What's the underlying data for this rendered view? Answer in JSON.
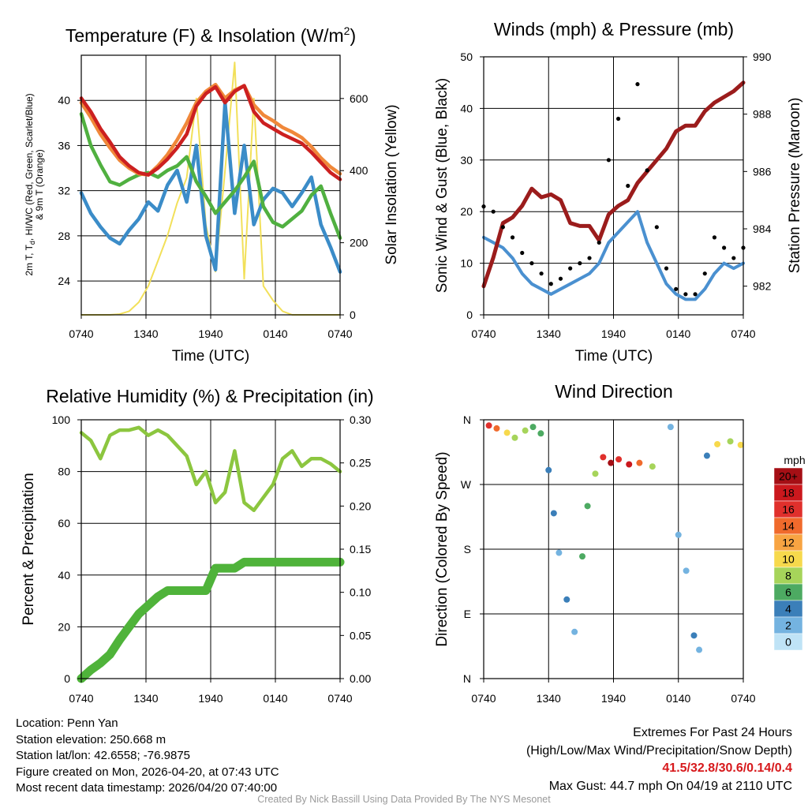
{
  "chart_data": [
    {
      "type": "line",
      "title": "Temperature (F) & Insolation (W/m",
      "title_sup": "2",
      "title_end": ")",
      "xlabel": "Time (UTC)",
      "ylabel_lines": [
        "2m T, T",
        "d",
        ", HI/WC (Red, Green, Scarlet/Blue)",
        "& 9m T (Orange)"
      ],
      "y2label": "Solar Insolation (Yellow)",
      "x_ticks": [
        "0740",
        "1340",
        "1940",
        "0140",
        "0740"
      ],
      "ylim": [
        21,
        44
      ],
      "y_ticks": [
        "24",
        "28",
        "32",
        "36",
        "40"
      ],
      "y2lim": [
        0,
        720
      ],
      "y2_ticks": [
        "0",
        "200",
        "400",
        "600"
      ],
      "series": [
        {
          "name": "2m T",
          "color": "#cc2020",
          "values": [
            40.2,
            39.0,
            37.5,
            36.3,
            35.0,
            34.2,
            33.6,
            33.4,
            34.0,
            34.8,
            35.8,
            37.0,
            39.5,
            40.6,
            41.2,
            39.8,
            40.8,
            41.3,
            39.0,
            38.0,
            37.5,
            37.0,
            36.6,
            36.2,
            35.4,
            34.5,
            33.6,
            33.0
          ]
        },
        {
          "name": "9m T",
          "color": "#f0883a",
          "values": [
            39.8,
            38.5,
            37.0,
            35.8,
            34.7,
            34.0,
            33.5,
            33.4,
            34.2,
            35.2,
            36.5,
            38.0,
            39.8,
            40.8,
            41.4,
            40.2,
            40.9,
            41.3,
            39.6,
            38.7,
            38.2,
            37.6,
            37.2,
            36.7,
            35.9,
            34.9,
            34.1,
            33.5
          ]
        },
        {
          "name": "Td",
          "color": "#50b040",
          "values": [
            38.8,
            36.0,
            34.3,
            32.8,
            32.5,
            33.0,
            33.4,
            33.6,
            33.2,
            33.8,
            34.2,
            35.0,
            32.8,
            31.5,
            30.0,
            31.0,
            32.0,
            33.2,
            34.6,
            30.6,
            29.2,
            28.8,
            29.5,
            30.2,
            31.6,
            32.4,
            30.0,
            27.8
          ]
        },
        {
          "name": "HI/WC",
          "color": "#3b8cc8",
          "values": [
            31.8,
            30.0,
            28.8,
            27.8,
            27.3,
            28.5,
            29.5,
            31.0,
            30.2,
            32.5,
            33.8,
            31.0,
            36.0,
            28.0,
            25.0,
            39.8,
            30.0,
            36.0,
            29.0,
            31.2,
            32.2,
            31.8,
            30.6,
            31.8,
            33.2,
            29.0,
            27.0,
            24.8
          ]
        }
      ],
      "insolation": {
        "name": "Solar Insolation",
        "color": "#f2e05a",
        "values": [
          0,
          0,
          0,
          0,
          2,
          10,
          35,
          80,
          150,
          220,
          310,
          380,
          600,
          250,
          120,
          400,
          700,
          100,
          600,
          80,
          40,
          10,
          0,
          0,
          0,
          0,
          0,
          0
        ]
      }
    },
    {
      "type": "line",
      "title": "Winds (mph) & Pressure (mb)",
      "xlabel": "Time (UTC)",
      "ylabel": "Sonic Wind & Gust (Blue, Black)",
      "y2label": "Station Pressure (Maroon)",
      "x_ticks": [
        "0740",
        "1340",
        "1940",
        "0140",
        "0740"
      ],
      "ylim": [
        0,
        50
      ],
      "y_ticks": [
        "0",
        "10",
        "20",
        "30",
        "40",
        "50"
      ],
      "y2lim": [
        981,
        990
      ],
      "y2_ticks": [
        "982",
        "984",
        "986",
        "988",
        "990"
      ],
      "series": [
        {
          "name": "Sonic Wind",
          "color": "#4a90d0",
          "values": [
            15,
            14,
            13,
            11,
            8,
            6,
            5,
            4,
            5,
            6,
            7,
            8,
            10,
            14,
            16,
            18,
            20,
            14,
            10,
            6,
            4,
            3,
            3,
            5,
            8,
            10,
            9,
            10
          ]
        },
        {
          "name": "Pressure",
          "color": "#9b1c1c",
          "values": [
            982.0,
            983.0,
            984.2,
            984.4,
            984.8,
            985.4,
            985.1,
            985.2,
            985.0,
            984.2,
            984.1,
            984.1,
            983.6,
            984.5,
            984.8,
            985.0,
            985.6,
            986.0,
            986.4,
            986.8,
            987.4,
            987.6,
            987.6,
            988.1,
            988.4,
            988.6,
            988.8,
            989.1
          ]
        }
      ],
      "gusts": {
        "name": "Gust",
        "color": "#000000",
        "values": [
          21,
          20,
          17,
          15,
          12,
          10,
          8,
          6,
          7,
          9,
          10,
          11,
          14,
          30,
          38,
          25,
          44.7,
          28,
          17,
          9,
          5,
          4,
          4,
          8,
          15,
          13,
          11,
          13
        ]
      }
    },
    {
      "type": "line",
      "title": "Relative Humidity (%) & Precipitation (in)",
      "ylabel": "Percent & Precipitation",
      "x_ticks": [
        "0740",
        "1340",
        "1940",
        "0140",
        "0740"
      ],
      "ylim": [
        0,
        100
      ],
      "y_ticks": [
        "0",
        "20",
        "40",
        "60",
        "80",
        "100"
      ],
      "y2lim": [
        0,
        0.3
      ],
      "y2_ticks": [
        "0.00",
        "0.05",
        "0.10",
        "0.15",
        "0.20",
        "0.25",
        "0.30"
      ],
      "series": [
        {
          "name": "Relative Humidity",
          "color": "#8cc63f",
          "values": [
            95,
            92,
            85,
            94,
            96,
            96,
            97,
            94,
            96,
            94,
            90,
            86,
            75,
            80,
            68,
            72,
            88,
            68,
            65,
            70,
            75,
            85,
            88,
            82,
            85,
            85,
            83,
            80
          ]
        },
        {
          "name": "Precipitation",
          "color": "#4fb33a",
          "values": [
            0.0,
            0.01,
            0.018,
            0.028,
            0.045,
            0.06,
            0.075,
            0.085,
            0.095,
            0.102,
            0.102,
            0.102,
            0.102,
            0.102,
            0.128,
            0.128,
            0.128,
            0.135,
            0.135,
            0.135,
            0.135,
            0.135,
            0.135,
            0.135,
            0.135,
            0.135,
            0.135,
            0.135
          ]
        }
      ]
    },
    {
      "type": "scatter",
      "title": "Wind Direction",
      "ylabel": "Direction (Colored By Speed)",
      "x_ticks": [
        "0740",
        "1340",
        "1940",
        "0140",
        "0740"
      ],
      "y_ticks": [
        "N",
        "E",
        "S",
        "W",
        "N"
      ],
      "ylim": [
        0,
        360
      ],
      "points": [
        {
          "t": 0.02,
          "dir": 352,
          "spd": 16
        },
        {
          "t": 0.05,
          "dir": 348,
          "spd": 15
        },
        {
          "t": 0.09,
          "dir": 342,
          "spd": 11
        },
        {
          "t": 0.12,
          "dir": 335,
          "spd": 9
        },
        {
          "t": 0.16,
          "dir": 345,
          "spd": 8
        },
        {
          "t": 0.19,
          "dir": 350,
          "spd": 6
        },
        {
          "t": 0.22,
          "dir": 341,
          "spd": 7
        },
        {
          "t": 0.25,
          "dir": 290,
          "spd": 4
        },
        {
          "t": 0.27,
          "dir": 230,
          "spd": 4
        },
        {
          "t": 0.29,
          "dir": 175,
          "spd": 3
        },
        {
          "t": 0.32,
          "dir": 110,
          "spd": 4
        },
        {
          "t": 0.35,
          "dir": 65,
          "spd": 3
        },
        {
          "t": 0.38,
          "dir": 170,
          "spd": 6
        },
        {
          "t": 0.4,
          "dir": 240,
          "spd": 7
        },
        {
          "t": 0.43,
          "dir": 285,
          "spd": 9
        },
        {
          "t": 0.46,
          "dir": 308,
          "spd": 17
        },
        {
          "t": 0.49,
          "dir": 300,
          "spd": 20
        },
        {
          "t": 0.52,
          "dir": 305,
          "spd": 16
        },
        {
          "t": 0.56,
          "dir": 298,
          "spd": 18
        },
        {
          "t": 0.6,
          "dir": 300,
          "spd": 14
        },
        {
          "t": 0.65,
          "dir": 295,
          "spd": 8
        },
        {
          "t": 0.72,
          "dir": 350,
          "spd": 2
        },
        {
          "t": 0.75,
          "dir": 200,
          "spd": 3
        },
        {
          "t": 0.78,
          "dir": 150,
          "spd": 2
        },
        {
          "t": 0.81,
          "dir": 60,
          "spd": 4
        },
        {
          "t": 0.83,
          "dir": 40,
          "spd": 3
        },
        {
          "t": 0.86,
          "dir": 310,
          "spd": 5
        },
        {
          "t": 0.9,
          "dir": 326,
          "spd": 10
        },
        {
          "t": 0.95,
          "dir": 330,
          "spd": 9
        },
        {
          "t": 0.99,
          "dir": 325,
          "spd": 11
        }
      ],
      "colorbar": {
        "title": "mph",
        "labels": [
          "20+",
          "18",
          "16",
          "14",
          "12",
          "10",
          "8",
          "6",
          "4",
          "2",
          "0"
        ],
        "colors": [
          "#a50f15",
          "#cb181d",
          "#e0302c",
          "#f06a2c",
          "#f8a442",
          "#f7d94c",
          "#a6d45a",
          "#4daa62",
          "#3b7fb9",
          "#74b3e0",
          "#bfe3f6"
        ]
      }
    }
  ],
  "info": {
    "location": "Location: Penn Yan",
    "elevation": "Station elevation: 250.668 m",
    "latlon": "Station lat/lon: 42.6558; -76.9875",
    "created": "Figure created on Mon, 2026-04-20, at 07:43 UTC",
    "recent": "Most recent data timestamp: 2026/04/20 07:40:00"
  },
  "extremes": {
    "title": "Extremes For Past 24 Hours",
    "subtitle": "(High/Low/Max Wind/Precipitation/Snow Depth)",
    "values": "41.5/32.8/30.6/0.14/0.4",
    "max_gust": "Max Gust: 44.7 mph On 04/19 at 2110 UTC"
  },
  "credit": "Created By Nick Bassill Using Data Provided By The NYS Mesonet"
}
